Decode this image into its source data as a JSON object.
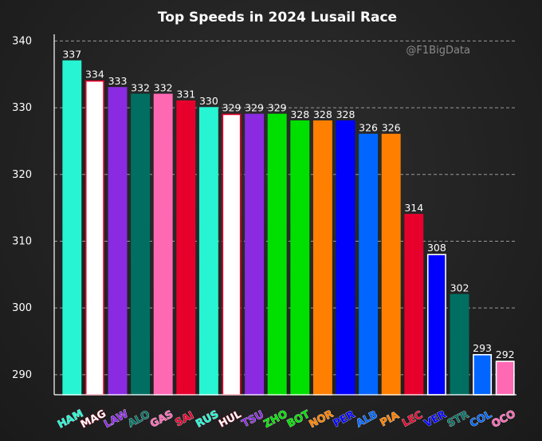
{
  "chart_data": {
    "type": "bar",
    "title": "Top Speeds in 2024 Lusail Race",
    "watermark": "@F1BigData",
    "xlabel": "",
    "ylabel": "",
    "ylim": [
      287,
      341
    ],
    "yticks": [
      290,
      300,
      310,
      320,
      330,
      340
    ],
    "grid": true,
    "categories": [
      "HAM",
      "MAG",
      "LAW",
      "ALO",
      "GAS",
      "SAI",
      "RUS",
      "HUL",
      "TSU",
      "ZHO",
      "BOT",
      "NOR",
      "PER",
      "ALB",
      "PIA",
      "LEC",
      "VER",
      "STR",
      "COL",
      "OCO"
    ],
    "values": [
      337,
      334,
      333,
      332,
      332,
      331,
      330,
      329,
      329,
      329,
      328,
      328,
      328,
      326,
      326,
      314,
      308,
      302,
      293,
      292
    ],
    "colors": [
      "#27F4D2",
      "#FFFFFF",
      "#8A2BE2",
      "#006F62",
      "#FF69B4",
      "#E8002D",
      "#27F4D2",
      "#FFFFFF",
      "#8A2BE2",
      "#00E000",
      "#00E000",
      "#FF8000",
      "#0000FF",
      "#0066FF",
      "#FF8000",
      "#E8002D",
      "#0000FF",
      "#006F62",
      "#0066FF",
      "#FF69B4"
    ],
    "edge_colors": [
      "#27F4D2",
      "#E8002D",
      "#8A2BE2",
      "#006F62",
      "#FF69B4",
      "#E8002D",
      "#27F4D2",
      "#E8002D",
      "#8A2BE2",
      "#00E000",
      "#00E000",
      "#FF8000",
      "#0000FF",
      "#0066FF",
      "#FF8000",
      "#E8002D",
      "#FFFFFF",
      "#006F62",
      "#FFFFFF",
      "#FFFFFF"
    ]
  }
}
